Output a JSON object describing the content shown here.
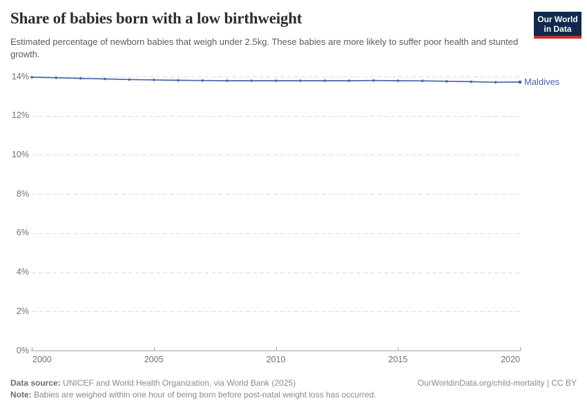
{
  "header": {
    "title": "Share of babies born with a low birthweight",
    "subtitle": "Estimated percentage of newborn babies that weigh under 2.5kg. These babies are more likely to suffer poor health and stunted growth.",
    "logo": {
      "line1": "Our World",
      "line2": "in Data",
      "bg_color": "#10294d",
      "bar_color": "#c5322d"
    }
  },
  "chart_data": {
    "type": "line",
    "title": "Share of babies born with a low birthweight",
    "xlabel": "",
    "ylabel": "",
    "xlim": [
      2000,
      2020
    ],
    "ylim": [
      0,
      14
    ],
    "grid": "horizontal-dashed",
    "legend_position": "end-of-line-label",
    "x_ticks": [
      {
        "value": 2000,
        "label": "2000"
      },
      {
        "value": 2005,
        "label": "2005"
      },
      {
        "value": 2010,
        "label": "2010"
      },
      {
        "value": 2015,
        "label": "2015"
      },
      {
        "value": 2020,
        "label": "2020"
      }
    ],
    "y_ticks": [
      {
        "value": 0,
        "label": "0%"
      },
      {
        "value": 2,
        "label": "2%"
      },
      {
        "value": 4,
        "label": "4%"
      },
      {
        "value": 6,
        "label": "6%"
      },
      {
        "value": 8,
        "label": "8%"
      },
      {
        "value": 10,
        "label": "10%"
      },
      {
        "value": 12,
        "label": "12%"
      },
      {
        "value": 14,
        "label": "14%"
      }
    ],
    "series": [
      {
        "name": "Maldives",
        "color": "#4666a5",
        "x": [
          2000,
          2001,
          2002,
          2003,
          2004,
          2005,
          2006,
          2007,
          2008,
          2009,
          2010,
          2011,
          2012,
          2013,
          2014,
          2015,
          2016,
          2017,
          2018,
          2019,
          2020
        ],
        "values": [
          13.97,
          13.94,
          13.91,
          13.88,
          13.85,
          13.83,
          13.81,
          13.8,
          13.79,
          13.79,
          13.79,
          13.79,
          13.79,
          13.79,
          13.8,
          13.79,
          13.78,
          13.76,
          13.74,
          13.71,
          13.72
        ]
      }
    ]
  },
  "footer": {
    "data_source_label": "Data source:",
    "data_source_text": " UNICEF and World Health Organization, via World Bank (2025)",
    "link_text": "OurWorldinData.org/child-mortality | CC BY",
    "note_label": "Note:",
    "note_text": " Babies are weighed within one hour of being born before post-natal weight loss has occurred."
  }
}
